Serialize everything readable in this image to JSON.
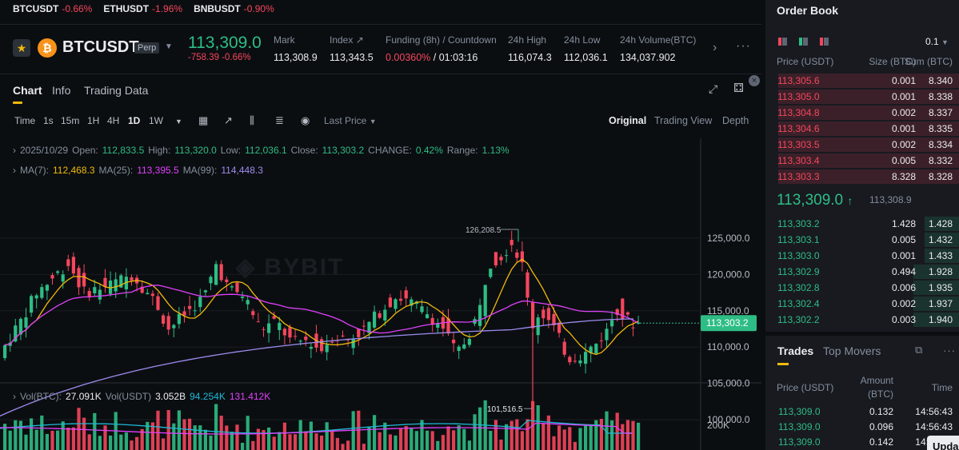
{
  "ticker": [
    {
      "symbol": "BTCUSDT",
      "change": "-0.66%"
    },
    {
      "symbol": "ETHUSDT",
      "change": "-1.96%"
    },
    {
      "symbol": "BNBUSDT",
      "change": "-0.90%"
    }
  ],
  "header": {
    "pair": "BTCUSDT",
    "contract": "Perp",
    "last_price": "113,309.0",
    "change": "-758.39 -0.66%",
    "stats": [
      {
        "label": "Mark",
        "value": "113,308.9"
      },
      {
        "label": "Index ↗",
        "value": "113,343.5"
      },
      {
        "label": "Funding (8h) / Countdown",
        "value_a": "0.00360%",
        "value_b": " / 01:03:16"
      },
      {
        "label": "24h High",
        "value": "116,074.3"
      },
      {
        "label": "24h Low",
        "value": "112,036.1"
      },
      {
        "label": "24h Volume(BTC)",
        "value": "134,037.902"
      }
    ]
  },
  "chart_tabs": [
    "Chart",
    "Info",
    "Trading Data"
  ],
  "toolbar": {
    "intervals": [
      "Time",
      "1s",
      "15m",
      "1H",
      "4H",
      "1D",
      "1W"
    ],
    "active_interval": "1D",
    "price_type": "Last Price",
    "views": [
      "Original",
      "Trading View",
      "Depth"
    ],
    "active_view": "Original"
  },
  "ohlc": {
    "date": "2025/10/29",
    "open_label": "Open:",
    "open": "112,833.5",
    "high_label": "High:",
    "high": "113,320.0",
    "low_label": "Low:",
    "low": "112,036.1",
    "close_label": "Close:",
    "close": "113,303.2",
    "change_label": "CHANGE:",
    "change": "0.42%",
    "range_label": "Range:",
    "range": "1.13%"
  },
  "ma": {
    "ma7_label": "MA(7):",
    "ma7": "112,468.3",
    "ma25_label": "MA(25):",
    "ma25": "113,395.5",
    "ma99_label": "MA(99):",
    "ma99": "114,448.3"
  },
  "volume": {
    "btc_label": "Vol(BTC):",
    "btc": "27.091K",
    "usdt_label": "Vol(USDT)",
    "usdt": "3.052B",
    "ma_a": "94.254K",
    "ma_b": "131.412K",
    "axis_label": "200K"
  },
  "chart_annotations": {
    "high_marker": "126,208.5",
    "low_marker": "101,516.5",
    "current_price_tag": "113,303.2"
  },
  "price_axis": [
    "125,000.0",
    "120,000.0",
    "115,000.0",
    "110,000.0",
    "105,000.0",
    "100,000.0"
  ],
  "colors": {
    "up": "#2ebd85",
    "down": "#f6465d",
    "ma7": "#f0b90b",
    "ma25": "#e040fb",
    "ma99": "#9c8cf0",
    "accent": "#f0b90b"
  },
  "orderbook": {
    "title": "Order Book",
    "step": "0.1",
    "headers": [
      "Price (USDT)",
      "Size (BTC)",
      "Sum (BTC)"
    ],
    "asks": [
      {
        "price": "113,305.6",
        "size": "0.001",
        "sum": "8.340",
        "depth": 0.99
      },
      {
        "price": "113,305.0",
        "size": "0.001",
        "sum": "8.338",
        "depth": 0.99
      },
      {
        "price": "113,304.8",
        "size": "0.002",
        "sum": "8.337",
        "depth": 0.99
      },
      {
        "price": "113,304.6",
        "size": "0.001",
        "sum": "8.335",
        "depth": 0.99
      },
      {
        "price": "113,303.5",
        "size": "0.002",
        "sum": "8.334",
        "depth": 0.99
      },
      {
        "price": "113,303.4",
        "size": "0.005",
        "sum": "8.332",
        "depth": 0.99
      },
      {
        "price": "113,303.3",
        "size": "8.328",
        "sum": "8.328",
        "depth": 0.99
      }
    ],
    "mid_price": "113,309.0",
    "mid_arrow": "↑",
    "mark_price": "113,308.9",
    "bids": [
      {
        "price": "113,303.2",
        "size": "1.428",
        "sum": "1.428",
        "depth": 0.19
      },
      {
        "price": "113,303.1",
        "size": "0.005",
        "sum": "1.432",
        "depth": 0.19
      },
      {
        "price": "113,303.0",
        "size": "0.001",
        "sum": "1.433",
        "depth": 0.19
      },
      {
        "price": "113,302.9",
        "size": "0.494",
        "sum": "1.928",
        "depth": 0.25
      },
      {
        "price": "113,302.8",
        "size": "0.006",
        "sum": "1.935",
        "depth": 0.25
      },
      {
        "price": "113,302.4",
        "size": "0.002",
        "sum": "1.937",
        "depth": 0.25
      },
      {
        "price": "113,302.2",
        "size": "0.003",
        "sum": "1.940",
        "depth": 0.25
      }
    ]
  },
  "trades": {
    "tabs": [
      "Trades",
      "Top Movers"
    ],
    "headers": {
      "price": "Price (USDT)",
      "amount": "Amount",
      "amount_unit": "(BTC)",
      "time": "Time"
    },
    "rows": [
      {
        "price": "113,309.0",
        "amount": "0.132",
        "time": "14:56:43"
      },
      {
        "price": "113,309.0",
        "amount": "0.096",
        "time": "14:56:43"
      },
      {
        "price": "113,309.0",
        "amount": "0.142",
        "time": "14:56:43"
      }
    ],
    "update_label": "Upda"
  }
}
